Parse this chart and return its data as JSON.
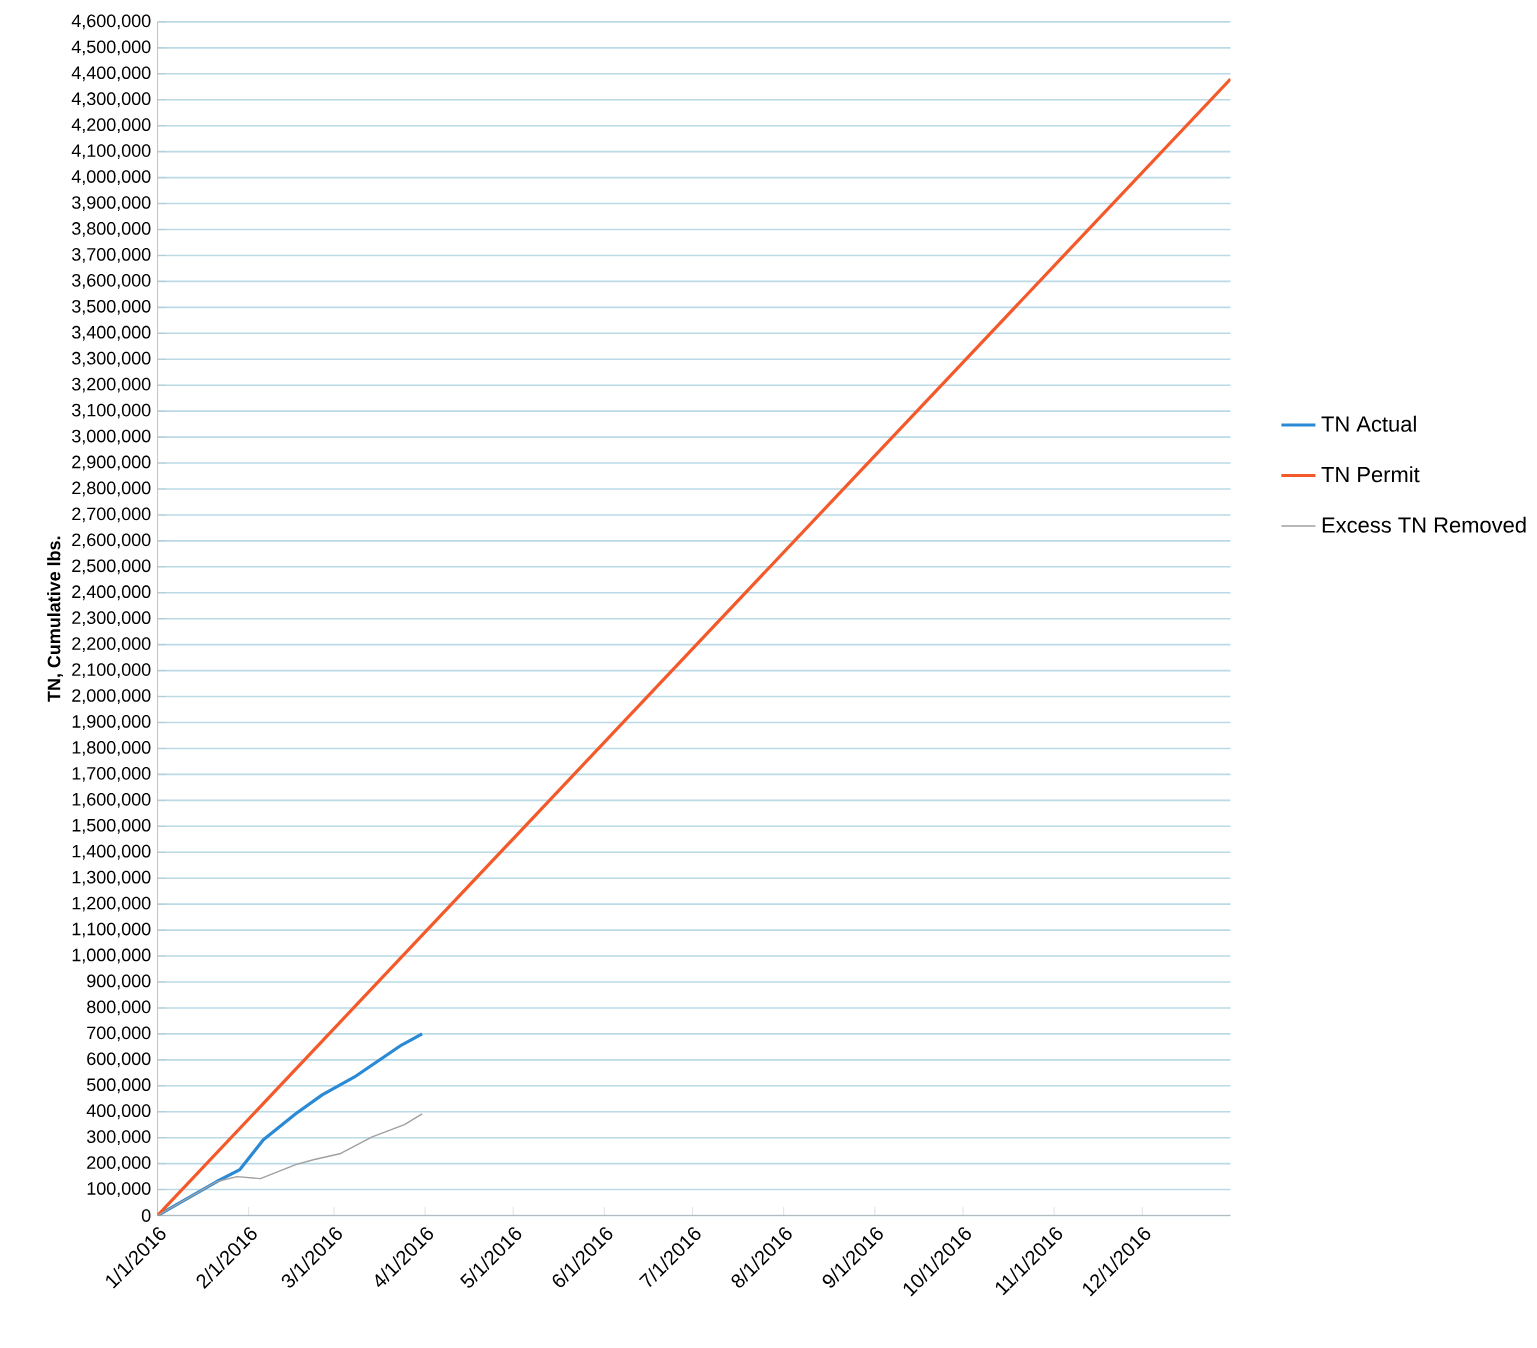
{
  "chart_data": {
    "type": "line",
    "ylabel": "TN, Cumulative lbs.",
    "xlim": [
      "2016-01-01",
      "2016-12-31"
    ],
    "xticks": [
      {
        "value": "2016-01-01",
        "label": "1/1/2016"
      },
      {
        "value": "2016-02-01",
        "label": "2/1/2016"
      },
      {
        "value": "2016-03-01",
        "label": "3/1/2016"
      },
      {
        "value": "2016-04-01",
        "label": "4/1/2016"
      },
      {
        "value": "2016-05-01",
        "label": "5/1/2016"
      },
      {
        "value": "2016-06-01",
        "label": "6/1/2016"
      },
      {
        "value": "2016-07-01",
        "label": "7/1/2016"
      },
      {
        "value": "2016-08-01",
        "label": "8/1/2016"
      },
      {
        "value": "2016-09-01",
        "label": "9/1/2016"
      },
      {
        "value": "2016-10-01",
        "label": "10/1/2016"
      },
      {
        "value": "2016-11-01",
        "label": "11/1/2016"
      },
      {
        "value": "2016-12-01",
        "label": "12/1/2016"
      }
    ],
    "ylim": [
      0,
      4600000
    ],
    "yticks": [
      0,
      {
        "value": 100000,
        "label": "100,000"
      },
      {
        "value": 200000,
        "label": "200,000"
      },
      {
        "value": 300000,
        "label": "300,000"
      },
      {
        "value": 400000,
        "label": "400,000"
      },
      {
        "value": 500000,
        "label": "500,000"
      },
      {
        "value": 600000,
        "label": "600,000"
      },
      {
        "value": 700000,
        "label": "700,000"
      },
      {
        "value": 800000,
        "label": "800,000"
      },
      {
        "value": 900000,
        "label": "900,000"
      },
      {
        "value": 1000000,
        "label": "1,000,000"
      },
      {
        "value": 1100000,
        "label": "1,100,000"
      },
      {
        "value": 1200000,
        "label": "1,200,000"
      },
      {
        "value": 1300000,
        "label": "1,300,000"
      },
      {
        "value": 1400000,
        "label": "1,400,000"
      },
      {
        "value": 1500000,
        "label": "1,500,000"
      },
      {
        "value": 1600000,
        "label": "1,600,000"
      },
      {
        "value": 1700000,
        "label": "1,700,000"
      },
      {
        "value": 1800000,
        "label": "1,800,000"
      },
      {
        "value": 1900000,
        "label": "1,900,000"
      },
      {
        "value": 2000000,
        "label": "2,000,000"
      },
      {
        "value": 2100000,
        "label": "2,100,000"
      },
      {
        "value": 2200000,
        "label": "2,200,000"
      },
      {
        "value": 2300000,
        "label": "2,300,000"
      },
      {
        "value": 2400000,
        "label": "2,400,000"
      },
      {
        "value": 2500000,
        "label": "2,500,000"
      },
      {
        "value": 2600000,
        "label": "2,600,000"
      },
      {
        "value": 2700000,
        "label": "2,700,000"
      },
      {
        "value": 2800000,
        "label": "2,800,000"
      },
      {
        "value": 2900000,
        "label": "2,900,000"
      },
      {
        "value": 3000000,
        "label": "3,000,000"
      },
      {
        "value": 3100000,
        "label": "3,100,000"
      },
      {
        "value": 3200000,
        "label": "3,200,000"
      },
      {
        "value": 3300000,
        "label": "3,300,000"
      },
      {
        "value": 3400000,
        "label": "3,400,000"
      },
      {
        "value": 3500000,
        "label": "3,500,000"
      },
      {
        "value": 3600000,
        "label": "3,600,000"
      },
      {
        "value": 3700000,
        "label": "3,700,000"
      },
      {
        "value": 3800000,
        "label": "3,800,000"
      },
      {
        "value": 3900000,
        "label": "3,900,000"
      },
      {
        "value": 4000000,
        "label": "4,000,000"
      },
      {
        "value": 4100000,
        "label": "4,100,000"
      },
      {
        "value": 4200000,
        "label": "4,200,000"
      },
      {
        "value": 4300000,
        "label": "4,300,000"
      },
      {
        "value": 4400000,
        "label": "4,400,000"
      },
      {
        "value": 4500000,
        "label": "4,500,000"
      },
      {
        "value": 4600000,
        "label": "4,600,000"
      }
    ],
    "grid": "y",
    "legend": "right",
    "line_style": "solid",
    "series": [
      {
        "name": "TN Actual",
        "color": "#2a8ad6",
        "x": [
          "2016-01-01",
          "2016-01-21",
          "2016-01-29",
          "2016-02-06",
          "2016-02-17",
          "2016-02-26",
          "2016-03-08",
          "2016-03-24",
          "2016-03-31"
        ],
        "values": [
          0,
          130000,
          177000,
          292000,
          392000,
          465000,
          534000,
          657000,
          700000
        ]
      },
      {
        "name": "TN Permit",
        "color": "#f4592a",
        "x": [
          "2016-01-01",
          "2016-12-31"
        ],
        "values": [
          0,
          4380000
        ]
      },
      {
        "name": "Excess TN Removed",
        "color": "#a0a0a0",
        "x": [
          "2016-01-01",
          "2016-01-21",
          "2016-01-28",
          "2016-02-05",
          "2016-02-17",
          "2016-02-23",
          "2016-03-03",
          "2016-03-14",
          "2016-03-25",
          "2016-03-31"
        ],
        "values": [
          0,
          130000,
          150000,
          142000,
          196000,
          215000,
          238000,
          303000,
          350000,
          392000
        ]
      }
    ]
  }
}
